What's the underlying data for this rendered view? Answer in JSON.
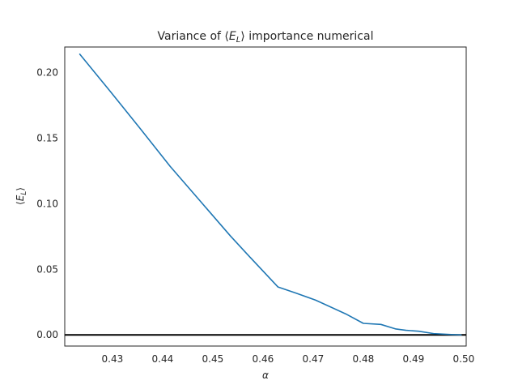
{
  "chart_data": {
    "type": "line",
    "title_prefix": "Variance of ⟨",
    "title_var": "E",
    "title_sub": "L",
    "title_suffix": "⟩ importance numerical",
    "xlabel": "α",
    "ylabel_prefix": "⟨",
    "ylabel_var": "E",
    "ylabel_sub": "L",
    "ylabel_suffix": "⟩",
    "xlim": [
      0.4205,
      0.5005
    ],
    "ylim": [
      -0.0085,
      0.2195
    ],
    "xticks": [
      0.43,
      0.44,
      0.45,
      0.46,
      0.47,
      0.48,
      0.49,
      0.5
    ],
    "xtick_labels": [
      "0.43",
      "0.44",
      "0.45",
      "0.46",
      "0.47",
      "0.48",
      "0.49",
      "0.50"
    ],
    "yticks": [
      0.0,
      0.05,
      0.1,
      0.15,
      0.2
    ],
    "ytick_labels": [
      "0.00",
      "0.05",
      "0.10",
      "0.15",
      "0.20"
    ],
    "grid": false,
    "series": [
      {
        "color": "#1f77b4",
        "x": [
          0.4235,
          0.4295,
          0.4355,
          0.4415,
          0.4475,
          0.4535,
          0.457,
          0.463,
          0.4665,
          0.4705,
          0.4765,
          0.48,
          0.4835,
          0.4865,
          0.4885,
          0.491,
          0.494,
          0.4975,
          0.4995
        ],
        "y": [
          0.214,
          0.186,
          0.1575,
          0.1285,
          0.102,
          0.0755,
          0.061,
          0.0365,
          0.032,
          0.0265,
          0.016,
          0.0088,
          0.008,
          0.0045,
          0.0035,
          0.0028,
          0.001,
          0.0003,
          0.0
        ]
      }
    ],
    "hline": {
      "y": 0.0,
      "color": "#000000"
    }
  }
}
